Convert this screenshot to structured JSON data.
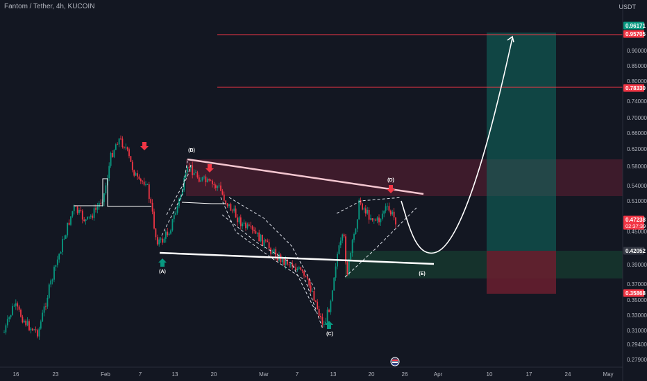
{
  "header": {
    "symbol_title": "Fantom / Tether, 4h, KUCOIN",
    "quote_unit": "USDT"
  },
  "price_axis": {
    "ticks": [
      "0.90000",
      "0.85000",
      "0.80000",
      "0.74000",
      "0.70000",
      "0.66000",
      "0.62000",
      "0.58000",
      "0.54000",
      "0.51000",
      "0.45000",
      "0.39000",
      "0.37000",
      "0.35000",
      "0.33000",
      "0.31000",
      "0.29400",
      "0.27900"
    ]
  },
  "price_tags": [
    {
      "label": "0.96171",
      "color": "#089981"
    },
    {
      "label": "0.95705",
      "color": "#f23645"
    },
    {
      "label": "0.78330",
      "color": "#f23645"
    },
    {
      "label": "0.47238",
      "sub": "02:37:39",
      "color": "#f23645"
    },
    {
      "label": "0.42052",
      "color": "#363a45"
    },
    {
      "label": "0.35868",
      "color": "#f23645"
    }
  ],
  "time_axis": {
    "ticks": [
      "16",
      "23",
      "Feb",
      "7",
      "13",
      "20",
      "Mar",
      "7",
      "13",
      "20",
      "26",
      "Apr",
      "10",
      "17",
      "24",
      "May"
    ]
  },
  "wave_labels": [
    "(A)",
    "(B)",
    "(C)",
    "(D)",
    "(E)"
  ],
  "colors": {
    "background": "#131722",
    "candle_up": "#089981",
    "candle_down": "#f23645",
    "target_zone": "#0e6b60",
    "stop_zone": "#6b1f2f",
    "supply_zone": "#5a1e32",
    "demand_zone": "#173a2f"
  },
  "icons": {
    "event": "economic-event-icon",
    "arrow_down": "red-down-arrow-icon",
    "arrow_up": "green-up-arrow-icon"
  }
}
